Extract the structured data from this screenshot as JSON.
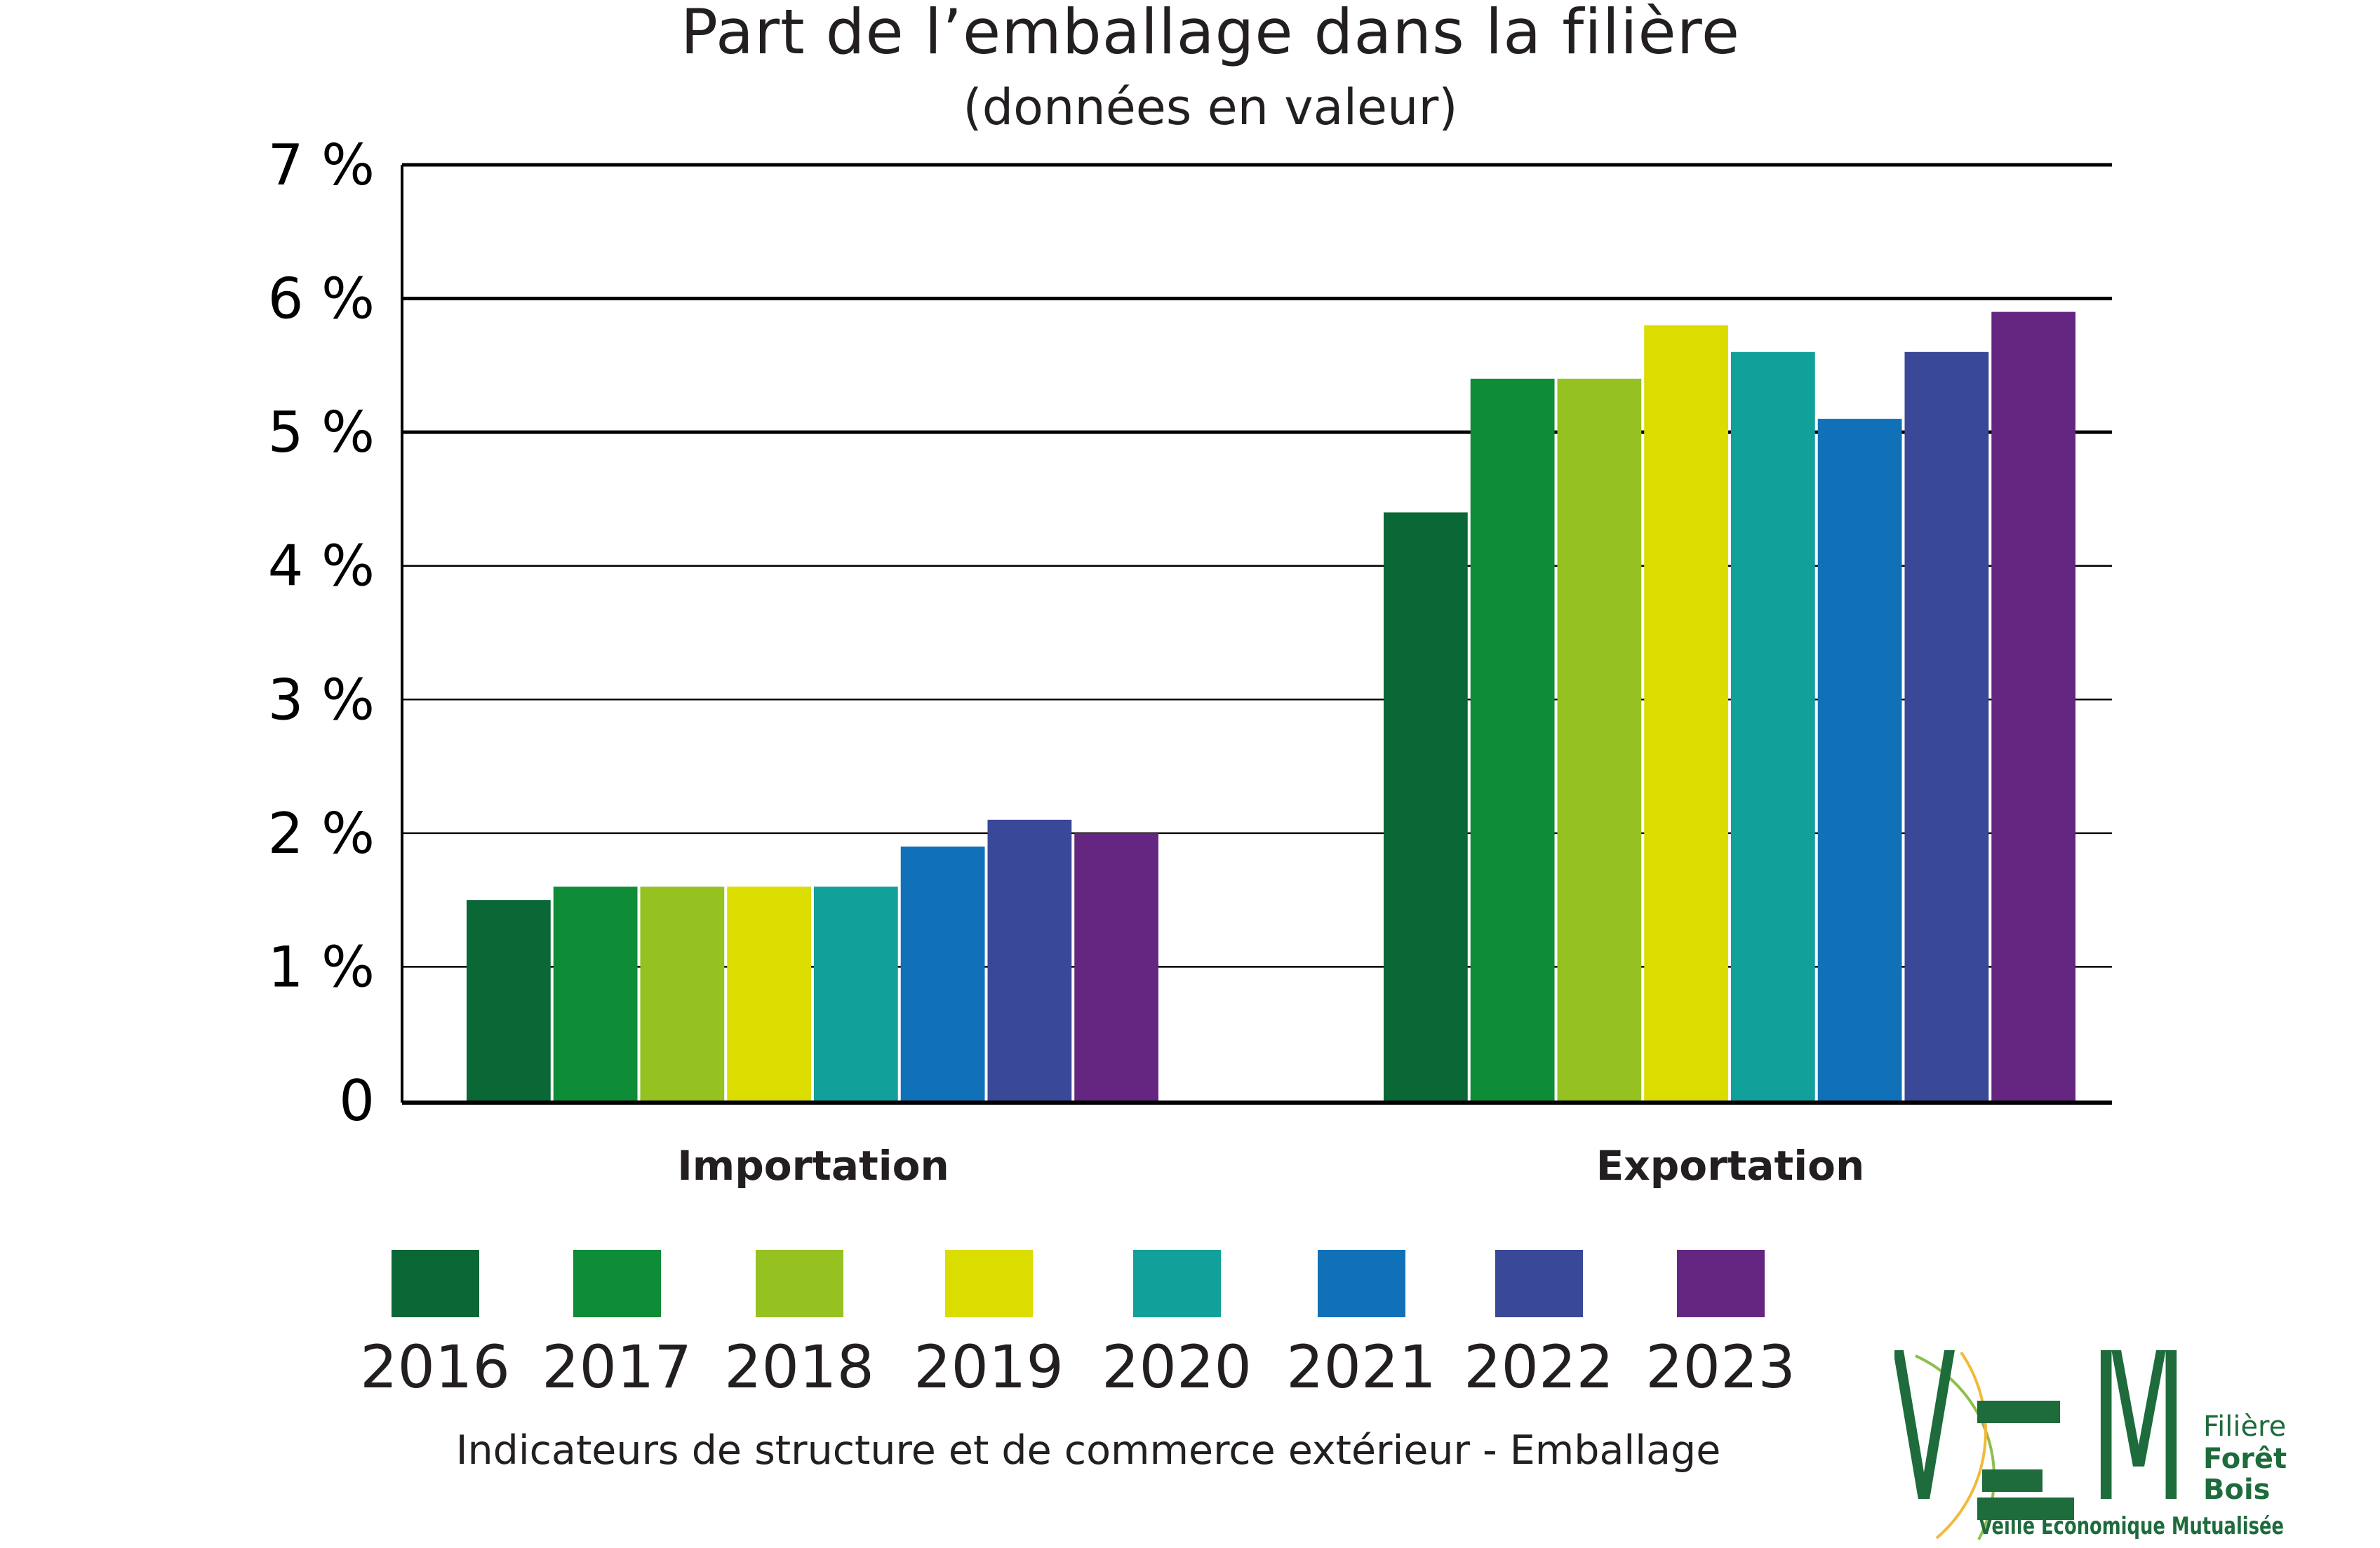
{
  "chart_data": {
    "type": "bar",
    "title": "Part de l’emballage dans la filière",
    "subtitle": "(données en valeur)",
    "xlabel": "",
    "ylabel": "",
    "categories": [
      "Importation",
      "Exportation"
    ],
    "series": [
      {
        "name": "2016",
        "color": "#0a6837",
        "values": [
          1.5,
          4.4
        ]
      },
      {
        "name": "2017",
        "color": "#0e8c37",
        "values": [
          1.6,
          5.4
        ]
      },
      {
        "name": "2018",
        "color": "#95c121",
        "values": [
          1.6,
          5.4
        ]
      },
      {
        "name": "2019",
        "color": "#dbdc00",
        "values": [
          1.6,
          5.8
        ]
      },
      {
        "name": "2020",
        "color": "#12a19a",
        "values": [
          1.6,
          5.6
        ]
      },
      {
        "name": "2021",
        "color": "#1071b8",
        "values": [
          1.9,
          5.1
        ]
      },
      {
        "name": "2022",
        "color": "#3a4898",
        "values": [
          2.1,
          5.6
        ]
      },
      {
        "name": "2023",
        "color": "#652682",
        "values": [
          2.0,
          5.9
        ]
      }
    ],
    "yticks": [
      "0",
      "1 %",
      "2 %",
      "3 %",
      "4 %",
      "5 %",
      "6 %",
      "7 %"
    ],
    "ylim": [
      0,
      7
    ],
    "unit": "%",
    "grid": true,
    "legend_position": "bottom"
  },
  "footer": "Indicateurs de structure et de commerce extérieur - Emballage",
  "logo": {
    "letters": [
      "V",
      "E",
      "M"
    ],
    "side_lines": [
      "Filière",
      "Forêt",
      "Bois"
    ],
    "tagline": "Veille Economique Mutualisée",
    "color": "#1e6b3c"
  }
}
